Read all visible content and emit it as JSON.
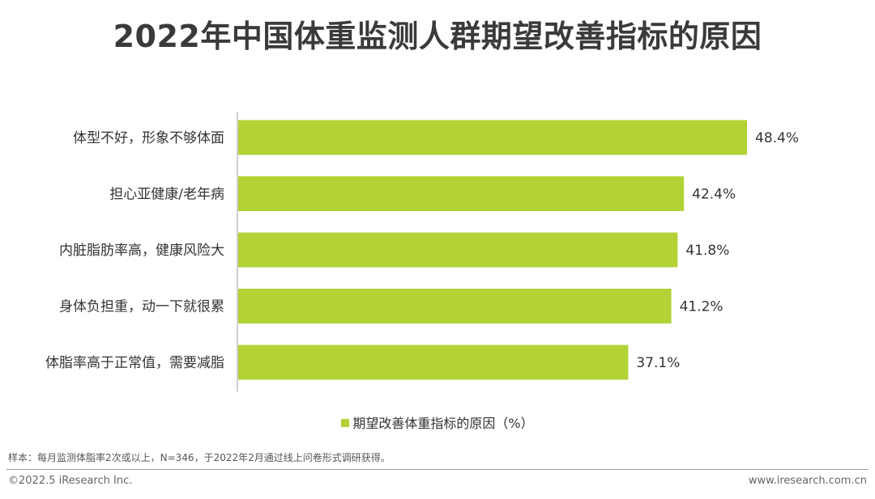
{
  "title": "2022年中国体重监测人群期望改善指标的原因",
  "colors": {
    "bar": "#b2d235",
    "axis": "#bfbfbf"
  },
  "chart_data": {
    "type": "bar",
    "orientation": "horizontal",
    "categories": [
      "体型不好，形象不够体面",
      "担心亚健康/老年病",
      "内脏脂肪率高，健康风险大",
      "身体负担重，动一下就很累",
      "体脂率高于正常值，需要减脂"
    ],
    "series": [
      {
        "name": "期望改善体重指标的原因（%）",
        "values": [
          48.4,
          42.4,
          41.8,
          41.2,
          37.1
        ]
      }
    ],
    "value_labels": [
      "48.4%",
      "42.4%",
      "41.8%",
      "41.2%",
      "37.1%"
    ],
    "xlim": [
      0,
      50
    ],
    "grid": false,
    "legend_position": "bottom"
  },
  "legend": {
    "label": "期望改善体重指标的原因（%）"
  },
  "note": "样本：每月监测体脂率2次或以上，N=346，于2022年2月通过线上问卷形式调研获得。",
  "footer": {
    "copyright": "©2022.5 iResearch Inc.",
    "website": "www.iresearch.com.cn"
  }
}
